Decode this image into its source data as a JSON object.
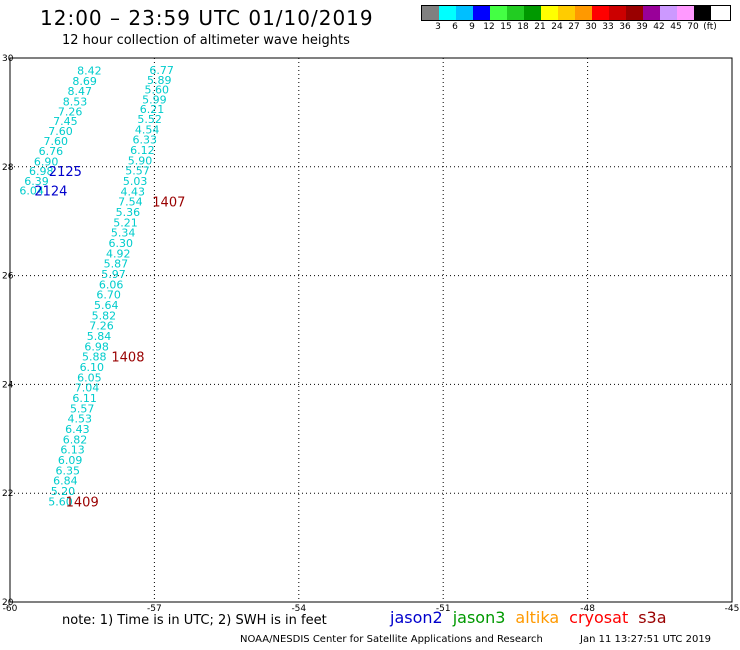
{
  "header": {
    "title": "12:00 – 23:59 UTC 01/10/2019",
    "subtitle": "12 hour collection of altimeter wave heights"
  },
  "color_scale": {
    "colors": [
      "#808080",
      "#00ffff",
      "#00bfff",
      "#0000ff",
      "#44ff44",
      "#22cc22",
      "#009900",
      "#ffff00",
      "#ffcc00",
      "#ff9900",
      "#ff0000",
      "#cc0000",
      "#990000",
      "#990099",
      "#cc99ff",
      "#ff99ff",
      "#000000"
    ],
    "tick_labels": [
      "3",
      "6",
      "9",
      "12",
      "15",
      "18",
      "21",
      "24",
      "27",
      "30",
      "33",
      "36",
      "39",
      "42",
      "45",
      "70",
      "(ft)"
    ]
  },
  "footer": {
    "note": "note:  1) Time is in UTC;  2) SWH is in feet",
    "credit": "NOAA/NESDIS Center for Satellite Applications and Research",
    "timestamp": "Jan 11 13:27:51 UTC 2019"
  },
  "satellites": [
    {
      "name": "jason2",
      "color": "#0000cc"
    },
    {
      "name": "jason3",
      "color": "#009900"
    },
    {
      "name": "altika",
      "color": "#ff9900"
    },
    {
      "name": "cryosat",
      "color": "#ff0000"
    },
    {
      "name": "s3a",
      "color": "#990000"
    }
  ],
  "chart_data": {
    "type": "scatter",
    "title": "12 hour collection of altimeter wave heights",
    "xlim": [
      -60,
      -45
    ],
    "ylim": [
      20,
      30
    ],
    "x_ticks": [
      -60,
      -57,
      -54,
      -51,
      -48,
      -45
    ],
    "x_tick_labels": [
      "-60",
      "-57",
      "-54",
      "-51",
      "-48",
      "-45"
    ],
    "y_ticks": [
      20,
      22,
      24,
      26,
      28,
      30
    ],
    "y_tick_labels": [
      "20",
      "22",
      "24",
      "26",
      "28",
      "30"
    ],
    "grid": true,
    "point_color": "#00cccc",
    "series": [
      {
        "name": "",
        "points": [
          {
            "x": -58.35,
            "y": 29.77,
            "v": "8.42"
          },
          {
            "x": -58.45,
            "y": 29.58,
            "v": "8.69"
          },
          {
            "x": -58.55,
            "y": 29.39,
            "v": "8.47"
          },
          {
            "x": -58.65,
            "y": 29.2,
            "v": "8.53"
          },
          {
            "x": -58.75,
            "y": 29.02,
            "v": "7.26"
          },
          {
            "x": -58.85,
            "y": 28.84,
            "v": "7.45"
          },
          {
            "x": -58.95,
            "y": 28.66,
            "v": "7.60"
          },
          {
            "x": -59.05,
            "y": 28.47,
            "v": "7.60"
          },
          {
            "x": -59.15,
            "y": 28.29,
            "v": "6.76"
          },
          {
            "x": -59.25,
            "y": 28.1,
            "v": "6.90"
          },
          {
            "x": -59.35,
            "y": 27.92,
            "v": "6.98"
          },
          {
            "x": -59.45,
            "y": 27.74,
            "v": "6.39"
          },
          {
            "x": -59.55,
            "y": 27.56,
            "v": "6.04"
          }
        ]
      },
      {
        "name": "",
        "points": [
          {
            "x": -56.85,
            "y": 29.78,
            "v": "6.77"
          },
          {
            "x": -56.9,
            "y": 29.6,
            "v": "5.89"
          },
          {
            "x": -56.95,
            "y": 29.42,
            "v": "5.60"
          },
          {
            "x": -57.0,
            "y": 29.24,
            "v": "5.99"
          },
          {
            "x": -57.05,
            "y": 29.06,
            "v": "6.21"
          },
          {
            "x": -57.1,
            "y": 28.88,
            "v": "5.52"
          },
          {
            "x": -57.15,
            "y": 28.69,
            "v": "4.54"
          },
          {
            "x": -57.2,
            "y": 28.5,
            "v": "6.33"
          },
          {
            "x": -57.25,
            "y": 28.31,
            "v": "6.12"
          },
          {
            "x": -57.3,
            "y": 28.12,
            "v": "5.90"
          },
          {
            "x": -57.35,
            "y": 27.93,
            "v": "5.57"
          },
          {
            "x": -57.4,
            "y": 27.74,
            "v": "5.03"
          },
          {
            "x": -57.45,
            "y": 27.55,
            "v": "4.43"
          },
          {
            "x": -57.5,
            "y": 27.36,
            "v": "7.54"
          },
          {
            "x": -57.55,
            "y": 27.17,
            "v": "5.36"
          },
          {
            "x": -57.6,
            "y": 26.98,
            "v": "5.21"
          },
          {
            "x": -57.65,
            "y": 26.79,
            "v": "5.34"
          },
          {
            "x": -57.7,
            "y": 26.6,
            "v": "6.30"
          },
          {
            "x": -57.75,
            "y": 26.41,
            "v": "4.92"
          },
          {
            "x": -57.8,
            "y": 26.22,
            "v": "5.87"
          },
          {
            "x": -57.85,
            "y": 26.03,
            "v": "5.97"
          },
          {
            "x": -57.9,
            "y": 25.84,
            "v": "6.06"
          },
          {
            "x": -57.95,
            "y": 25.65,
            "v": "6.70"
          },
          {
            "x": -58.0,
            "y": 25.46,
            "v": "5.64"
          },
          {
            "x": -58.05,
            "y": 25.27,
            "v": "5.82"
          },
          {
            "x": -58.1,
            "y": 25.08,
            "v": "7.26"
          },
          {
            "x": -58.15,
            "y": 24.89,
            "v": "5.84"
          },
          {
            "x": -58.2,
            "y": 24.7,
            "v": "6.98"
          },
          {
            "x": -58.25,
            "y": 24.51,
            "v": "5.88"
          },
          {
            "x": -58.3,
            "y": 24.32,
            "v": "6.10"
          },
          {
            "x": -58.35,
            "y": 24.13,
            "v": "6.05"
          },
          {
            "x": -58.4,
            "y": 23.94,
            "v": "7.04"
          },
          {
            "x": -58.45,
            "y": 23.75,
            "v": "6.11"
          },
          {
            "x": -58.5,
            "y": 23.56,
            "v": "5.57"
          },
          {
            "x": -58.55,
            "y": 23.37,
            "v": "4.53"
          },
          {
            "x": -58.6,
            "y": 23.18,
            "v": "6.43"
          },
          {
            "x": -58.65,
            "y": 22.99,
            "v": "6.82"
          },
          {
            "x": -58.7,
            "y": 22.8,
            "v": "6.13"
          },
          {
            "x": -58.75,
            "y": 22.61,
            "v": "6.09"
          },
          {
            "x": -58.8,
            "y": 22.42,
            "v": "6.35"
          },
          {
            "x": -58.85,
            "y": 22.23,
            "v": "6.84"
          },
          {
            "x": -58.9,
            "y": 22.04,
            "v": "5.20"
          },
          {
            "x": -58.95,
            "y": 21.85,
            "v": "5.60"
          }
        ]
      }
    ],
    "annotations": [
      {
        "text": "2125",
        "x": -58.85,
        "y": 27.92,
        "color": "#0000cc"
      },
      {
        "text": "2124",
        "x": -59.15,
        "y": 27.56,
        "color": "#0000cc"
      },
      {
        "text": "1407",
        "x": -56.7,
        "y": 27.36,
        "color": "#990000"
      },
      {
        "text": "1408",
        "x": -57.55,
        "y": 24.51,
        "color": "#990000"
      },
      {
        "text": "1409",
        "x": -58.5,
        "y": 21.85,
        "color": "#990000"
      }
    ]
  }
}
